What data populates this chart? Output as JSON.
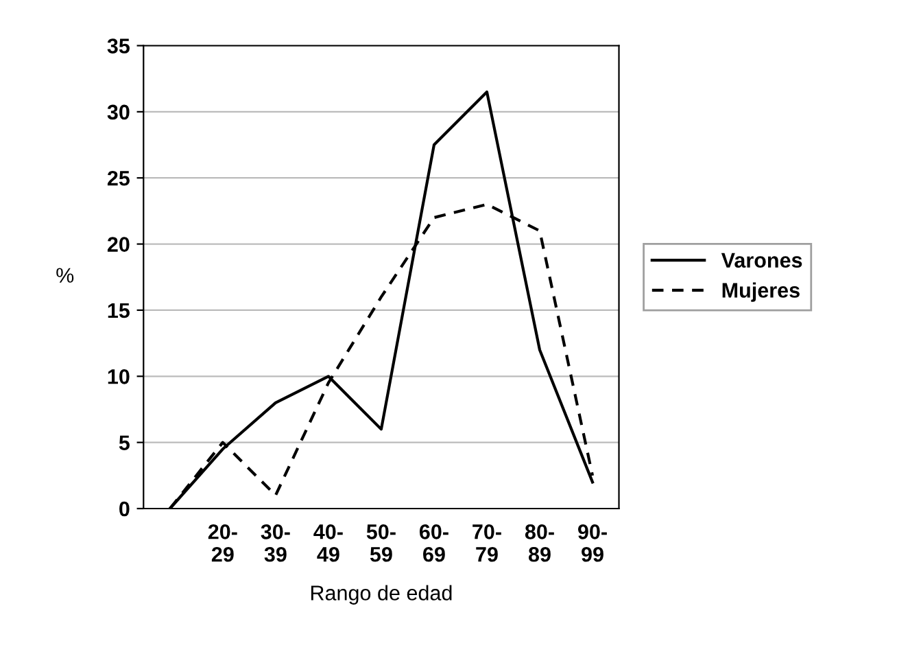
{
  "chart_data": {
    "type": "line",
    "xlabel": "Rango de edad",
    "ylabel": "%",
    "categories": [
      null,
      "20-\n29",
      "30-\n39",
      "40-\n49",
      "50-\n59",
      "60-\n69",
      "70-\n79",
      "80-\n89",
      "90-\n99"
    ],
    "series": [
      {
        "name": "Varones",
        "color": "#000000",
        "line_style": "solid",
        "values": [
          0,
          4.5,
          8,
          10,
          6,
          27.5,
          31.5,
          12,
          2
        ]
      },
      {
        "name": "Mujeres",
        "color": "#000000",
        "line_style": "dashed",
        "values": [
          0,
          5,
          1,
          9.5,
          16,
          22,
          23,
          21,
          2.5
        ]
      }
    ],
    "ylim": [
      0,
      35
    ],
    "yticks": [
      0,
      5,
      10,
      15,
      20,
      25,
      30,
      35
    ],
    "grid": "y",
    "legend": "right",
    "marker": "none"
  }
}
